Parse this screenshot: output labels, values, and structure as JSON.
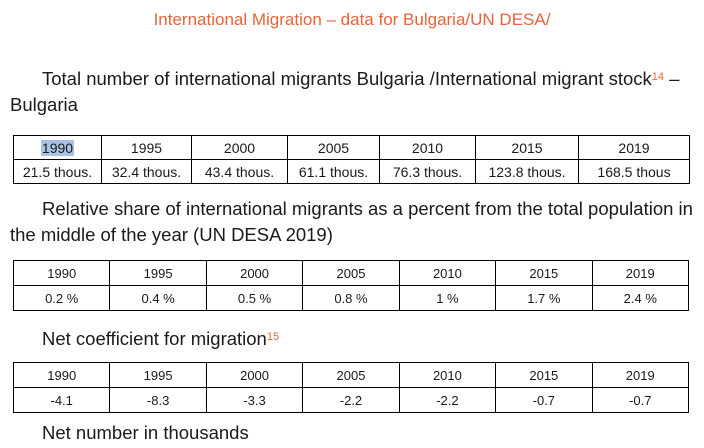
{
  "title": "International Migration – data for Bulgaria/UN DESA/",
  "section1": {
    "heading_pre": "Total number of international migrants Bulgaria /International migrant stock",
    "footnote": "14",
    "heading_post": " – Bulgaria",
    "years": [
      "1990",
      "1995",
      "2000",
      "2005",
      "2010",
      "2015",
      "2019"
    ],
    "values": [
      "21.5 thous.",
      "32.4 thous.",
      "43.4 thous.",
      "61.1 thous.",
      "76.3 thous.",
      "123.8 thous.",
      "168.5 thous"
    ]
  },
  "section2": {
    "heading": "Relative share of international migrants as a percent from the total population in the middle of the year (UN DESA 2019)",
    "years": [
      "1990",
      "1995",
      "2000",
      "2005",
      "2010",
      "2015",
      "2019"
    ],
    "values": [
      "0.2 %",
      "0.4 %",
      "0.5 %",
      "0.8 %",
      "1 %",
      "1.7 %",
      "2.4 %"
    ]
  },
  "section3": {
    "heading": "Net coefficient for migration",
    "footnote": "15",
    "years": [
      "1990",
      "1995",
      "2000",
      "2005",
      "2010",
      "2015",
      "2019"
    ],
    "values": [
      "-4.1",
      "-8.3",
      "-3.3",
      "-2.2",
      "-2.2",
      "-0.7",
      "-0.7"
    ]
  },
  "section4": {
    "heading": "Net number in thousands"
  }
}
